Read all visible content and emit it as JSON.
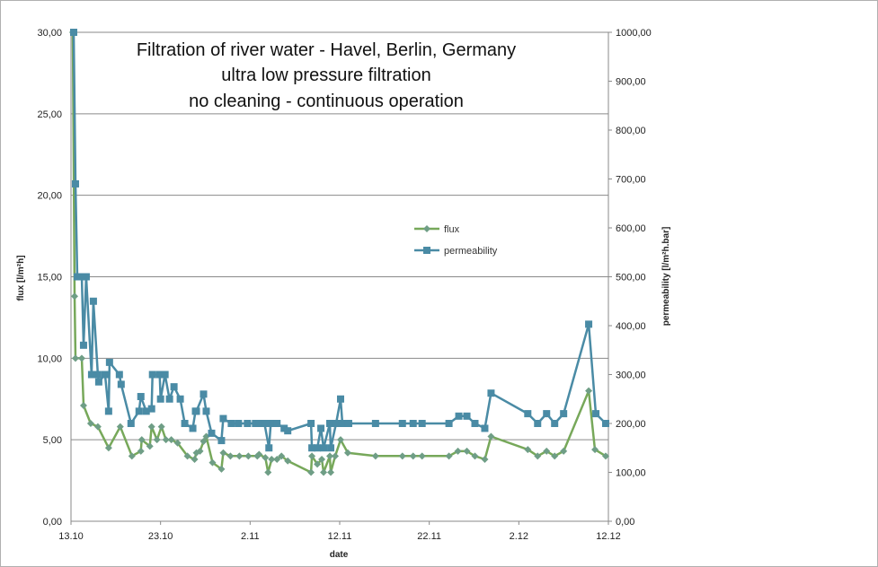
{
  "chart_data": {
    "type": "line",
    "title": [
      "Filtration of river water - Havel, Berlin, Germany",
      "ultra low pressure filtration",
      "no cleaning - continuous operation"
    ],
    "xlabel": "date",
    "ylabel_left": "flux [l/m²h]",
    "ylabel_right": "permeability [l/m²h.bar]",
    "x_ticks": [
      "13.10",
      "23.10",
      "2.11",
      "12.11",
      "22.11",
      "2.12",
      "12.12"
    ],
    "y_left_ticks": [
      "0,00",
      "5,00",
      "10,00",
      "15,00",
      "20,00",
      "25,00",
      "30,00"
    ],
    "y_right_ticks": [
      "0,00",
      "100,00",
      "200,00",
      "300,00",
      "400,00",
      "500,00",
      "600,00",
      "700,00",
      "800,00",
      "900,00",
      "1000,00"
    ],
    "xlim": [
      0,
      60
    ],
    "ylim_left": [
      0,
      30
    ],
    "ylim_right": [
      0,
      1000
    ],
    "grid": "horizontal",
    "legend_position": "center-right",
    "series": [
      {
        "name": "flux",
        "axis": "left",
        "color": "#77a85a",
        "marker_color": "#6f9e86",
        "marker": "diamond",
        "points": [
          [
            0.2,
            30
          ],
          [
            0.4,
            13.8
          ],
          [
            0.5,
            10
          ],
          [
            1.2,
            10
          ],
          [
            1.4,
            7.1
          ],
          [
            2.2,
            6
          ],
          [
            3,
            5.8
          ],
          [
            4.2,
            4.5
          ],
          [
            5.5,
            5.8
          ],
          [
            6.8,
            4
          ],
          [
            7.8,
            4.3
          ],
          [
            7.9,
            5
          ],
          [
            8.8,
            4.6
          ],
          [
            9,
            5.8
          ],
          [
            9.6,
            5
          ],
          [
            10.1,
            5.8
          ],
          [
            10.6,
            5
          ],
          [
            11.2,
            5
          ],
          [
            11.9,
            4.8
          ],
          [
            13,
            4
          ],
          [
            13.8,
            3.8
          ],
          [
            14,
            4.2
          ],
          [
            14.4,
            4.3
          ],
          [
            14.8,
            4.9
          ],
          [
            15.1,
            5.2
          ],
          [
            15.8,
            3.6
          ],
          [
            16.8,
            3.2
          ],
          [
            17,
            4.2
          ],
          [
            17.8,
            4
          ],
          [
            18.8,
            4
          ],
          [
            19.8,
            4
          ],
          [
            20.8,
            4
          ],
          [
            21,
            4.1
          ],
          [
            21.7,
            3.9
          ],
          [
            22,
            3
          ],
          [
            22.4,
            3.8
          ],
          [
            23,
            3.8
          ],
          [
            23.5,
            4
          ],
          [
            24.2,
            3.7
          ],
          [
            26.8,
            3
          ],
          [
            26.9,
            4
          ],
          [
            27.5,
            3.5
          ],
          [
            28,
            3.8
          ],
          [
            28.2,
            3
          ],
          [
            28.9,
            4
          ],
          [
            29,
            3
          ],
          [
            29.5,
            4
          ],
          [
            30.1,
            5
          ],
          [
            30.9,
            4.2
          ],
          [
            34,
            4
          ],
          [
            37,
            4
          ],
          [
            38.2,
            4
          ],
          [
            39.2,
            4
          ],
          [
            42.2,
            4
          ],
          [
            43.2,
            4.3
          ],
          [
            44.2,
            4.3
          ],
          [
            45.1,
            4
          ],
          [
            46.2,
            3.8
          ],
          [
            46.9,
            5.2
          ],
          [
            51,
            4.4
          ],
          [
            52.1,
            4
          ],
          [
            53.1,
            4.3
          ],
          [
            54,
            4
          ],
          [
            55,
            4.3
          ],
          [
            57.8,
            8
          ],
          [
            58.5,
            4.4
          ],
          [
            59.7,
            4
          ]
        ]
      },
      {
        "name": "permeability",
        "axis": "right",
        "color": "#4a8ba5",
        "marker_color": "#4a8ba5",
        "marker": "square",
        "points": [
          [
            0.3,
            1000
          ],
          [
            0.5,
            690
          ],
          [
            0.7,
            500
          ],
          [
            1.2,
            500
          ],
          [
            1.4,
            360
          ],
          [
            1.7,
            500
          ],
          [
            2.3,
            300
          ],
          [
            2.5,
            450
          ],
          [
            3,
            300
          ],
          [
            3.1,
            285
          ],
          [
            3.8,
            300
          ],
          [
            4.2,
            225
          ],
          [
            4.3,
            325
          ],
          [
            5.4,
            300
          ],
          [
            5.6,
            280
          ],
          [
            6.7,
            200
          ],
          [
            7.6,
            225
          ],
          [
            7.8,
            255
          ],
          [
            8.4,
            225
          ],
          [
            9,
            230
          ],
          [
            9.1,
            300
          ],
          [
            9.9,
            300
          ],
          [
            10,
            250
          ],
          [
            10.5,
            300
          ],
          [
            11,
            250
          ],
          [
            11.5,
            275
          ],
          [
            12.2,
            250
          ],
          [
            12.7,
            200
          ],
          [
            13.6,
            190
          ],
          [
            13.9,
            225
          ],
          [
            14,
            225
          ],
          [
            14.8,
            260
          ],
          [
            15.1,
            225
          ],
          [
            15.7,
            180
          ],
          [
            16.8,
            165
          ],
          [
            17,
            210
          ],
          [
            17.9,
            200
          ],
          [
            18.7,
            200
          ],
          [
            19.7,
            200
          ],
          [
            20.6,
            200
          ],
          [
            21,
            200
          ],
          [
            21.6,
            200
          ],
          [
            22.1,
            150
          ],
          [
            22.3,
            200
          ],
          [
            23,
            200
          ],
          [
            23.8,
            190
          ],
          [
            24.2,
            185
          ],
          [
            26.8,
            200
          ],
          [
            26.9,
            150
          ],
          [
            27.5,
            150
          ],
          [
            27.9,
            190
          ],
          [
            28.2,
            150
          ],
          [
            28.9,
            200
          ],
          [
            29,
            150
          ],
          [
            29.6,
            200
          ],
          [
            30.1,
            250
          ],
          [
            30.3,
            200
          ],
          [
            31,
            200
          ],
          [
            34,
            200
          ],
          [
            37,
            200
          ],
          [
            38.2,
            200
          ],
          [
            39.2,
            200
          ],
          [
            42.2,
            200
          ],
          [
            43.3,
            215
          ],
          [
            44.2,
            215
          ],
          [
            45.1,
            200
          ],
          [
            46.2,
            190
          ],
          [
            46.9,
            262
          ],
          [
            51,
            220
          ],
          [
            52.1,
            200
          ],
          [
            53.1,
            220
          ],
          [
            54,
            200
          ],
          [
            55,
            220
          ],
          [
            57.8,
            403
          ],
          [
            58.6,
            220
          ],
          [
            59.7,
            200
          ]
        ]
      }
    ]
  }
}
